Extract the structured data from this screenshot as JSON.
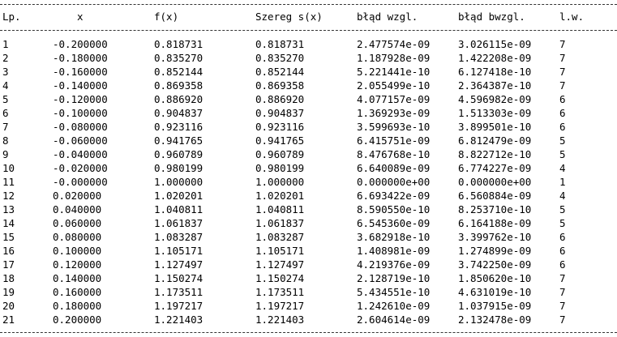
{
  "table": {
    "header": [
      "Lp.",
      "x",
      "f(x)",
      "Szereg s(x)",
      "błąd wzgl.",
      "błąd bwzgl.",
      "l.w."
    ],
    "rows": [
      [
        "1",
        "-0.200000",
        "0.818731",
        "0.818731",
        "2.477574e-09",
        "3.026115e-09",
        "7"
      ],
      [
        "2",
        "-0.180000",
        "0.835270",
        "0.835270",
        "1.187928e-09",
        "1.422208e-09",
        "7"
      ],
      [
        "3",
        "-0.160000",
        "0.852144",
        "0.852144",
        "5.221441e-10",
        "6.127418e-10",
        "7"
      ],
      [
        "4",
        "-0.140000",
        "0.869358",
        "0.869358",
        "2.055499e-10",
        "2.364387e-10",
        "7"
      ],
      [
        "5",
        "-0.120000",
        "0.886920",
        "0.886920",
        "4.077157e-09",
        "4.596982e-09",
        "6"
      ],
      [
        "6",
        "-0.100000",
        "0.904837",
        "0.904837",
        "1.369293e-09",
        "1.513303e-09",
        "6"
      ],
      [
        "7",
        "-0.080000",
        "0.923116",
        "0.923116",
        "3.599693e-10",
        "3.899501e-10",
        "6"
      ],
      [
        "8",
        "-0.060000",
        "0.941765",
        "0.941765",
        "6.415751e-09",
        "6.812479e-09",
        "5"
      ],
      [
        "9",
        "-0.040000",
        "0.960789",
        "0.960789",
        "8.476768e-10",
        "8.822712e-10",
        "5"
      ],
      [
        "10",
        "-0.020000",
        "0.980199",
        "0.980199",
        "6.640089e-09",
        "6.774227e-09",
        "4"
      ],
      [
        "11",
        "-0.000000",
        "1.000000",
        "1.000000",
        "0.000000e+00",
        "0.000000e+00",
        "1"
      ],
      [
        "12",
        "0.020000",
        "1.020201",
        "1.020201",
        "6.693422e-09",
        "6.560884e-09",
        "4"
      ],
      [
        "13",
        "0.040000",
        "1.040811",
        "1.040811",
        "8.590550e-10",
        "8.253710e-10",
        "5"
      ],
      [
        "14",
        "0.060000",
        "1.061837",
        "1.061837",
        "6.545360e-09",
        "6.164188e-09",
        "5"
      ],
      [
        "15",
        "0.080000",
        "1.083287",
        "1.083287",
        "3.682918e-10",
        "3.399762e-10",
        "6"
      ],
      [
        "16",
        "0.100000",
        "1.105171",
        "1.105171",
        "1.408981e-09",
        "1.274899e-09",
        "6"
      ],
      [
        "17",
        "0.120000",
        "1.127497",
        "1.127497",
        "4.219376e-09",
        "3.742250e-09",
        "6"
      ],
      [
        "18",
        "0.140000",
        "1.150274",
        "1.150274",
        "2.128719e-10",
        "1.850620e-10",
        "7"
      ],
      [
        "19",
        "0.160000",
        "1.173511",
        "1.173511",
        "5.434551e-10",
        "4.631019e-10",
        "7"
      ],
      [
        "20",
        "0.180000",
        "1.197217",
        "1.197217",
        "1.242610e-09",
        "1.037915e-09",
        "7"
      ],
      [
        "21",
        "0.200000",
        "1.221403",
        "1.221403",
        "2.604614e-09",
        "2.132478e-09",
        "7"
      ]
    ]
  }
}
